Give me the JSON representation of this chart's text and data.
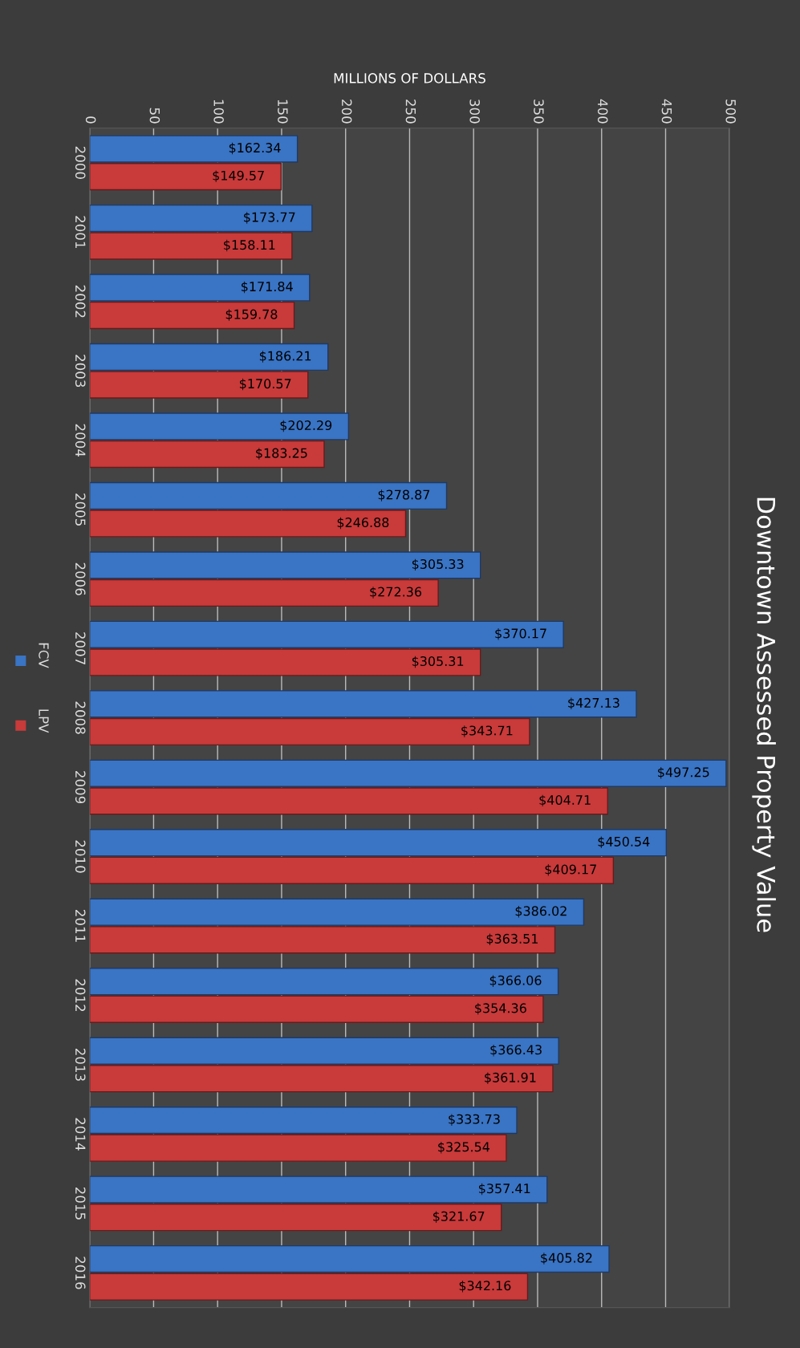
{
  "chart_data": {
    "type": "bar",
    "orientation": "horizontal",
    "title": "Downtown Assessed Property Value",
    "xlabel": "MILLIONS OF DOLLARS",
    "categories": [
      "2000",
      "2001",
      "2002",
      "2003",
      "2004",
      "2005",
      "2006",
      "2007",
      "2008",
      "2009",
      "2010",
      "2011",
      "2012",
      "2013",
      "2014",
      "2015",
      "2016"
    ],
    "series": [
      {
        "name": "FCV",
        "color": "#3a74c4",
        "values": [
          162.34,
          173.77,
          171.84,
          186.21,
          202.29,
          278.87,
          305.33,
          370.17,
          427.13,
          497.25,
          450.54,
          386.02,
          366.06,
          366.43,
          333.73,
          357.41,
          405.82
        ],
        "value_labels": [
          "$162.34",
          "$173.77",
          "$171.84",
          "$186.21",
          "$202.29",
          "$278.87",
          "$305.33",
          "$370.17",
          "$427.13",
          "$497.25",
          "$450.54",
          "$386.02",
          "$366.06",
          "$366.43",
          "$333.73",
          "$357.41",
          "$405.82"
        ]
      },
      {
        "name": "LPV",
        "color": "#c93a3a",
        "values": [
          149.57,
          158.11,
          159.78,
          170.57,
          183.25,
          246.88,
          272.36,
          305.31,
          343.71,
          404.71,
          409.17,
          363.51,
          354.36,
          361.91,
          325.54,
          321.67,
          342.16
        ],
        "value_labels": [
          "$149.57",
          "$158.11",
          "$159.78",
          "$170.57",
          "$183.25",
          "$246.88",
          "$272.36",
          "$305.31",
          "$343.71",
          "$404.71",
          "$409.17",
          "$363.51",
          "$354.36",
          "$361.91",
          "$325.54",
          "$321.67",
          "$342.16"
        ]
      }
    ],
    "xlim": [
      0,
      500
    ],
    "xticks": [
      0,
      50,
      100,
      150,
      200,
      250,
      300,
      350,
      400,
      450,
      500
    ],
    "grid": "x",
    "legend": "left"
  }
}
